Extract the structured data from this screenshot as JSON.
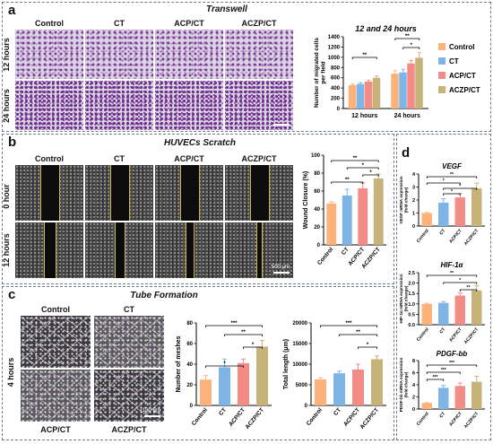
{
  "colors": {
    "control": "#FDB27C",
    "ct": "#7FB5E6",
    "acp_ct": "#F38B87",
    "aczp_ct": "#C7B27A",
    "panel_border": "#6f7a88"
  },
  "legend": [
    "Control",
    "CT",
    "ACP/CT",
    "ACZP/CT"
  ],
  "panel_a": {
    "letter": "a",
    "title": "Transwell",
    "columns": [
      "Control",
      "CT",
      "ACP/CT",
      "ACZP/CT"
    ],
    "rows": [
      "12 hours",
      "24 hours"
    ],
    "scale_bar": "500 μm"
  },
  "panel_b": {
    "letter": "b",
    "title": "HUVECs Scratch",
    "columns": [
      "Control",
      "CT",
      "ACP/CT",
      "ACZP/CT"
    ],
    "rows": [
      "0 hour",
      "12 hours"
    ],
    "scale_bar": "500 μm"
  },
  "panel_c": {
    "letter": "c",
    "title": "Tube Formation",
    "top_labels": [
      "Control",
      "CT"
    ],
    "bottom_labels": [
      "ACP/CT",
      "ACZP/CT"
    ],
    "row_label": "4 hours",
    "scale_bar": "100 μm"
  },
  "panel_d": {
    "letter": "d"
  },
  "chart_data": [
    {
      "id": "transwell",
      "type": "bar",
      "title": "12 and 24 hours",
      "ylabel": "Number of migrated cells per field",
      "categories": [
        "12 hours",
        "24 hours"
      ],
      "series": [
        {
          "name": "Control",
          "values": [
            455,
            680
          ],
          "errors": [
            25,
            60
          ]
        },
        {
          "name": "CT",
          "values": [
            480,
            705
          ],
          "errors": [
            25,
            60
          ]
        },
        {
          "name": "ACP/CT",
          "values": [
            525,
            880
          ],
          "errors": [
            30,
            60
          ]
        },
        {
          "name": "ACZP/CT",
          "values": [
            600,
            990
          ],
          "errors": [
            35,
            100
          ]
        }
      ],
      "yticks": [
        0,
        200,
        400,
        600,
        800,
        1000,
        1200,
        1400
      ],
      "ylim": [
        0,
        1400
      ],
      "significance": [
        "**",
        "**",
        "*"
      ],
      "legend": "right"
    },
    {
      "id": "wound",
      "type": "bar",
      "ylabel": "Wound Closure (%)",
      "categories": [
        "Control",
        "CT",
        "ACP/CT",
        "ACZP/CT"
      ],
      "values": [
        46,
        55,
        63,
        74
      ],
      "errors": [
        2,
        7,
        6,
        5
      ],
      "yticks": [
        0,
        20,
        40,
        60,
        80,
        100
      ],
      "ylim": [
        0,
        100
      ],
      "significance": [
        "**",
        "*",
        "*",
        "**"
      ]
    },
    {
      "id": "meshes",
      "type": "bar",
      "ylabel": "Number of meshes",
      "categories": [
        "Control",
        "CT",
        "ACP/CT",
        "ACZP/CT"
      ],
      "values": [
        25,
        37,
        41,
        57
      ],
      "errors": [
        4,
        8,
        4,
        6
      ],
      "yticks": [
        0,
        20,
        40,
        60,
        80
      ],
      "ylim": [
        0,
        80
      ],
      "significance": [
        "*",
        "***",
        "**",
        "*"
      ]
    },
    {
      "id": "length",
      "type": "bar",
      "ylabel": "Total length (μm)",
      "categories": [
        "Control",
        "CT",
        "ACP/CT",
        "ACZP/CT"
      ],
      "values": [
        6300,
        7800,
        8700,
        11200
      ],
      "errors": [
        400,
        500,
        1300,
        800
      ],
      "yticks": [
        0,
        5000,
        10000,
        15000,
        20000
      ],
      "ylim": [
        0,
        20000
      ],
      "significance": [
        "***",
        "**",
        "*"
      ]
    },
    {
      "id": "vegf",
      "type": "bar",
      "title": "VEGF",
      "ylabel": "VEGF mRNA expression (fold change)",
      "categories": [
        "Control",
        "CT",
        "ACP/CT",
        "ACZP/CT"
      ],
      "values": [
        1.0,
        1.8,
        2.2,
        2.9
      ],
      "errors": [
        0.05,
        0.3,
        0.3,
        0.4
      ],
      "yticks": [
        0,
        1,
        2,
        3,
        4
      ],
      "ylim": [
        0,
        4
      ],
      "significance": [
        "**",
        "*",
        "*",
        "*"
      ]
    },
    {
      "id": "hif",
      "type": "bar",
      "title": "HIF-1α",
      "ylabel": "HIF-1α mRNA expression (fold change)",
      "categories": [
        "Control",
        "CT",
        "ACP/CT",
        "ACZP/CT"
      ],
      "values": [
        1.0,
        1.05,
        1.4,
        1.65
      ],
      "errors": [
        0.03,
        0.06,
        0.12,
        0.22
      ],
      "yticks": [
        0.0,
        0.5,
        1.0,
        1.5,
        2.0,
        2.5
      ],
      "ylim": [
        0,
        2.5
      ],
      "significance": [
        "**",
        "*",
        "**"
      ]
    },
    {
      "id": "pdgf",
      "type": "bar",
      "title": "PDGF-bb",
      "ylabel": "PDGF-bb mRNA expression (fold change)",
      "categories": [
        "Control",
        "CT",
        "ACP/CT",
        "ACZP/CT"
      ],
      "values": [
        1.0,
        3.5,
        3.8,
        4.5
      ],
      "errors": [
        0.05,
        0.4,
        0.5,
        0.9
      ],
      "yticks": [
        0,
        2,
        4,
        6,
        8
      ],
      "ylim": [
        0,
        8
      ],
      "significance": [
        "***",
        "***",
        "***"
      ]
    }
  ]
}
